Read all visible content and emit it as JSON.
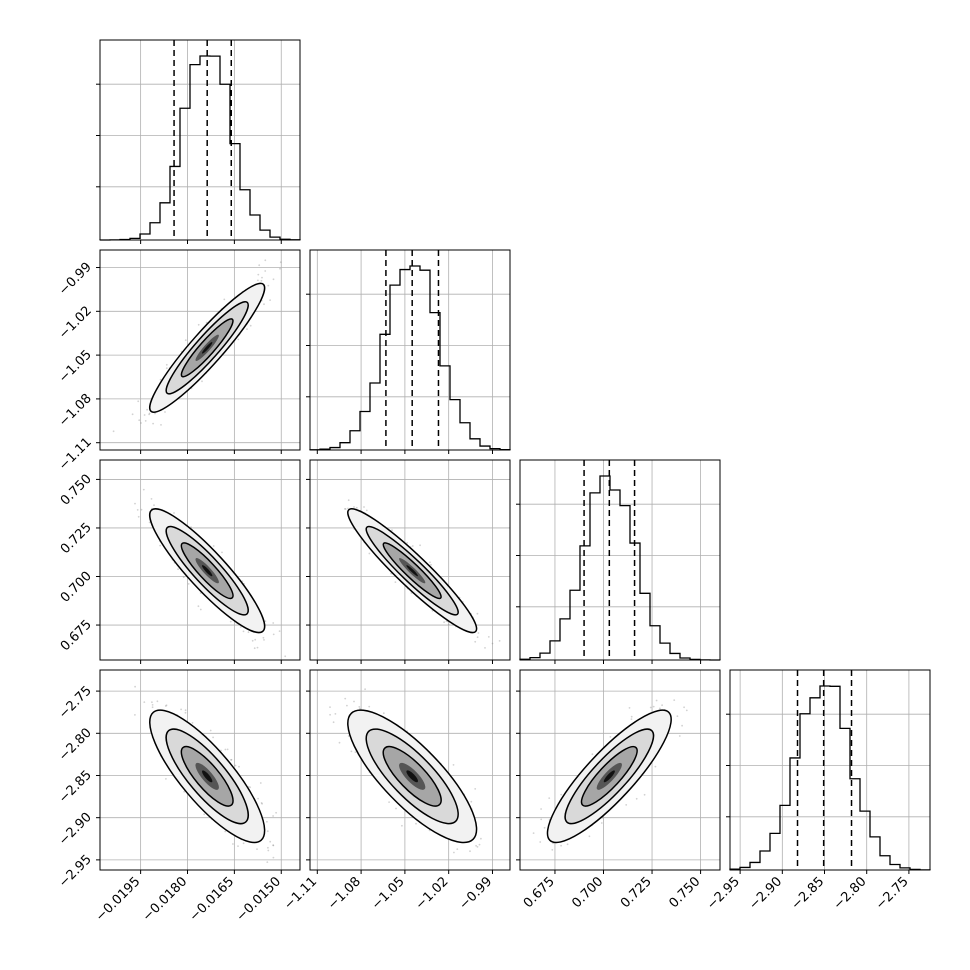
{
  "chart_data": {
    "type": "corner",
    "grid": true,
    "colors": {
      "line": "#000000",
      "grid": "#b0b0b0",
      "scatter": "#7f7f7f",
      "background": "#ffffff"
    },
    "params": [
      {
        "range": [
          -0.0208,
          -0.0144
        ],
        "ticks": [
          -0.0195,
          -0.018,
          -0.0165,
          -0.015
        ],
        "tick_labels": [
          "−0.0195",
          "−0.0180",
          "−0.0165",
          "−0.0150"
        ],
        "quantiles": [
          -0.01843,
          -0.01737,
          -0.0166
        ],
        "median": -0.01737,
        "sigma": 0.00075
      },
      {
        "range": [
          -1.115,
          -0.978
        ],
        "ticks": [
          -1.11,
          -1.08,
          -1.05,
          -1.02,
          -0.99
        ],
        "tick_labels": [
          "−1.11",
          "−1.08",
          "−1.05",
          "−1.02",
          "−0.99"
        ],
        "quantiles": [
          -1.063,
          -1.045,
          -1.027
        ],
        "median": -1.045,
        "sigma": 0.018
      },
      {
        "range": [
          0.657,
          0.76
        ],
        "ticks": [
          0.675,
          0.7,
          0.725,
          0.75
        ],
        "tick_labels": [
          "0.675",
          "0.700",
          "0.725",
          "0.750"
        ],
        "quantiles": [
          0.69,
          0.703,
          0.716
        ],
        "median": 0.703,
        "sigma": 0.013
      },
      {
        "range": [
          -2.962,
          -2.725
        ],
        "ticks": [
          -2.95,
          -2.9,
          -2.85,
          -2.8,
          -2.75
        ],
        "tick_labels": [
          "−2.95",
          "−2.90",
          "−2.85",
          "−2.80",
          "−2.75"
        ],
        "quantiles": [
          -2.882,
          -2.851,
          -2.818
        ],
        "median": -2.851,
        "sigma": 0.032
      }
    ],
    "correlations": [
      [
        1,
        0.93,
        -0.9,
        -0.82
      ],
      [
        0.93,
        1,
        -0.94,
        -0.8
      ],
      [
        -0.9,
        -0.94,
        1,
        0.86
      ],
      [
        -0.82,
        -0.8,
        0.86,
        1
      ]
    ]
  }
}
